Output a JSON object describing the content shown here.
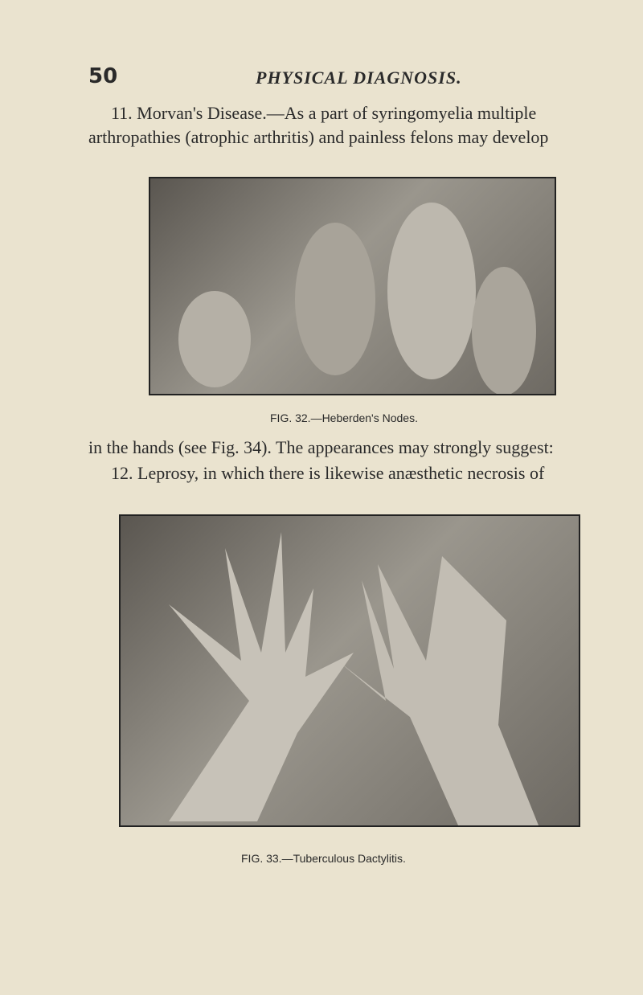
{
  "header": {
    "page_number": "50",
    "title": "PHYSICAL DIAGNOSIS."
  },
  "paragraphs": [
    "11. Morvan's Disease.—As a part of syringomyelia multiple",
    "arthropathies (atrophic arthritis) and painless felons may develop",
    "in the hands (see Fig. 34). The appearances may strongly suggest:",
    "12. Leprosy, in which there is likewise anæsthetic necrosis of"
  ],
  "figures": [
    {
      "caption": "FIG. 32.—Heberden's Nodes."
    },
    {
      "caption": "FIG. 33.—Tuberculous Dactylitis."
    }
  ]
}
